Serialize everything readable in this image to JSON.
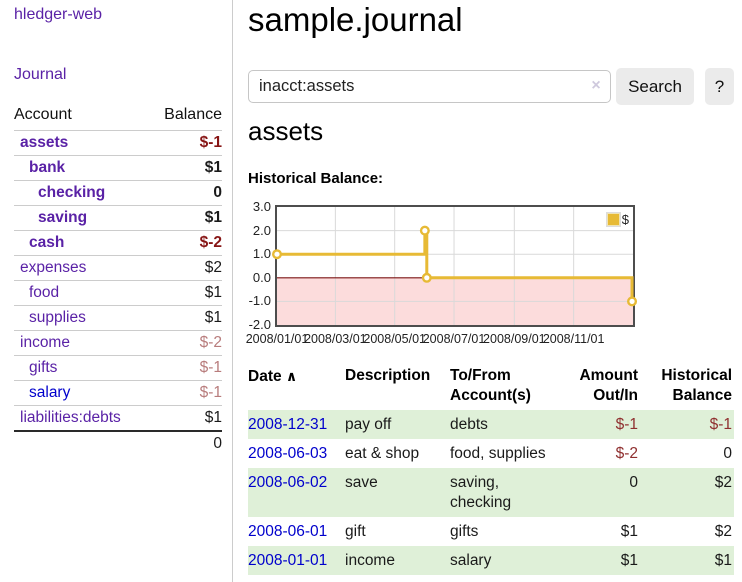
{
  "palette": {
    "purple": "#5a22a6",
    "blue": "#0000cc",
    "neg-strong": "#871515",
    "neg-muted": "#b87c7c",
    "neg-table": "#8f2f2f",
    "row-green": "#dff0d8",
    "gold": "#e7ba35",
    "chart-border": "#4d4d4d",
    "pink": "#fcdcdc",
    "zero-line": "#7b1313",
    "grid": "#d9d9d9",
    "btn-bg": "#ebebeb",
    "border-gray": "#cccccc"
  },
  "sidebar": {
    "brand": "hledger-web",
    "nav": [
      {
        "label": "Journal"
      }
    ],
    "accounts_table": {
      "headers": {
        "account": "Account",
        "balance": "Balance"
      },
      "rows": [
        {
          "name": "assets",
          "balance": "$-1",
          "level": 1,
          "bold": true,
          "balance_style": "neg-strong"
        },
        {
          "name": "bank",
          "balance": "$1",
          "level": 2,
          "bold": true,
          "balance_style": "pos"
        },
        {
          "name": "checking",
          "balance": "0",
          "level": 3,
          "bold": true,
          "balance_style": "pos"
        },
        {
          "name": "saving",
          "balance": "$1",
          "level": 3,
          "bold": true,
          "balance_style": "pos"
        },
        {
          "name": "cash",
          "balance": "$-2",
          "level": 2,
          "bold": true,
          "balance_style": "neg-strong"
        },
        {
          "name": "expenses",
          "balance": "$2",
          "level": 1,
          "bold": false,
          "balance_style": "pos"
        },
        {
          "name": "food",
          "balance": "$1",
          "level": 2,
          "bold": false,
          "balance_style": "pos"
        },
        {
          "name": "supplies",
          "balance": "$1",
          "level": 2,
          "bold": false,
          "balance_style": "pos"
        },
        {
          "name": "income",
          "balance": "$-2",
          "level": 1,
          "bold": false,
          "balance_style": "neg-muted"
        },
        {
          "name": "gifts",
          "balance": "$-1",
          "level": 2,
          "bold": false,
          "balance_style": "neg-muted"
        },
        {
          "name": "salary",
          "balance": "$-1",
          "level": 2,
          "bold": false,
          "balance_style": "neg-muted",
          "link_color": "blue"
        },
        {
          "name": "liabilities:debts",
          "balance": "$1",
          "level": 1,
          "bold": false,
          "balance_style": "pos"
        }
      ],
      "total": "0"
    }
  },
  "header": {
    "title": "sample.journal"
  },
  "search": {
    "value": "inacct:assets",
    "clear_icon": "×",
    "button": "Search",
    "help_button": "?"
  },
  "account_page": {
    "title": "assets",
    "chart_label": "Historical Balance:"
  },
  "chart_data": {
    "type": "line",
    "style": "step-after",
    "title": "Historical Balance",
    "series": [
      {
        "name": "$",
        "points": [
          [
            "2008-01-01",
            1
          ],
          [
            "2008-06-01",
            2
          ],
          [
            "2008-06-03",
            0
          ],
          [
            "2008-12-31",
            -1
          ]
        ]
      }
    ],
    "x_range": [
      "2008-01-01",
      "2009-01-01"
    ],
    "ylim": [
      -2,
      3
    ],
    "y_ticks": [
      "3.0",
      "2.0",
      "1.0",
      "0.0",
      "-1.0",
      "-2.0"
    ],
    "x_ticks": [
      "2008/01/01",
      "2008/03/01",
      "2008/05/01",
      "2008/07/01",
      "2008/09/01",
      "2008/11/01"
    ],
    "legend": {
      "label": "$",
      "position": "top-right"
    },
    "grid": true,
    "negative_region_shaded": true
  },
  "register": {
    "headers": {
      "date": "Date",
      "description": "Description",
      "accounts": "To/From Account(s)",
      "amount": "Amount Out/In",
      "balance": "Historical Balance"
    },
    "sort_icon": "∧",
    "rows": [
      {
        "date": "2008-12-31",
        "description": "pay off",
        "accounts": "debts",
        "amount": "$-1",
        "balance": "$-1",
        "amount_neg": true,
        "balance_neg": true
      },
      {
        "date": "2008-06-03",
        "description": "eat & shop",
        "accounts": "food, supplies",
        "amount": "$-2",
        "balance": "0",
        "amount_neg": true,
        "balance_neg": false
      },
      {
        "date": "2008-06-02",
        "description": "save",
        "accounts": "saving, checking",
        "amount": "0",
        "balance": "$2",
        "amount_neg": false,
        "balance_neg": false
      },
      {
        "date": "2008-06-01",
        "description": "gift",
        "accounts": "gifts",
        "amount": "$1",
        "balance": "$2",
        "amount_neg": false,
        "balance_neg": false
      },
      {
        "date": "2008-01-01",
        "description": "income",
        "accounts": "salary",
        "amount": "$1",
        "balance": "$1",
        "amount_neg": false,
        "balance_neg": false
      }
    ]
  }
}
